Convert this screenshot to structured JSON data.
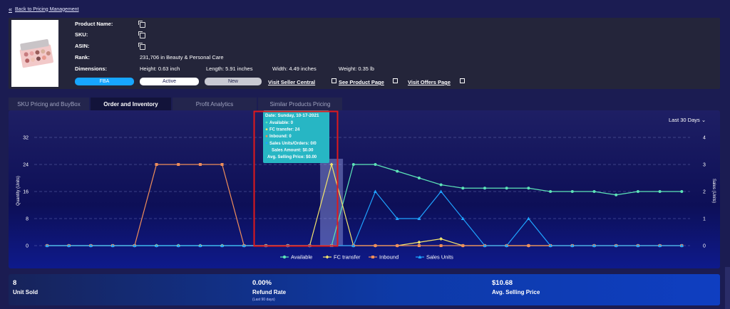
{
  "nav": {
    "back_label": "Back to Pricing Management"
  },
  "product": {
    "fields": {
      "name_label": "Product Name:",
      "sku_label": "SKU:",
      "asin_label": "ASIN:",
      "rank_label": "Rank:",
      "rank_value": "231,706 in Beauty & Personal Care",
      "dimensions_label": "Dimensions:",
      "height": "Height: 0.63 inch",
      "length": "Length: 5.91 inches",
      "width": "Width: 4.49 inches",
      "weight": "Weight: 0.35 lb"
    },
    "badges": {
      "fulfillment": "FBA",
      "status": "Active",
      "condition": "New"
    },
    "links": {
      "seller_central": "Visit Seller Central",
      "product_page": "See Product Page",
      "offers_page": "Visit Offers Page"
    }
  },
  "tabs": [
    "SKU Pricing and BuyBox",
    "Order and Inventory",
    "Profit Analytics",
    "Similar Products Pricing"
  ],
  "active_tab": "Order and Inventory",
  "chart_controls": {
    "range": "Last 30 Days"
  },
  "chart_data": {
    "type": "line",
    "ylabel_left": "Quantity (Units)",
    "ylabel_right": "Sales (Units)",
    "ylim_left": [
      0,
      32
    ],
    "ylim_right": [
      0,
      4
    ],
    "yticks_left": [
      "0",
      "8",
      "16",
      "24",
      "32"
    ],
    "yticks_right": [
      "0",
      "1",
      "2",
      "3",
      "4"
    ],
    "n_points": 30,
    "series": [
      {
        "name": "Available",
        "axis": "left",
        "color": "#5de5b8",
        "marker": "circle",
        "values": [
          0,
          0,
          0,
          0,
          0,
          0,
          0,
          0,
          0,
          0,
          0,
          0,
          0,
          0,
          24,
          24,
          22,
          20,
          18,
          17,
          17,
          17,
          17,
          16,
          16,
          16,
          15,
          16,
          16,
          16
        ]
      },
      {
        "name": "FC transfer",
        "axis": "left",
        "color": "#f4e56d",
        "marker": "diamond",
        "values": [
          0,
          0,
          0,
          0,
          0,
          0,
          0,
          0,
          0,
          0,
          0,
          0,
          0,
          24,
          0,
          0,
          0,
          1,
          2,
          0,
          0,
          0,
          0,
          0,
          0,
          0,
          0,
          0,
          0,
          0
        ]
      },
      {
        "name": "Inbound",
        "axis": "left",
        "color": "#f08e5a",
        "marker": "square",
        "values": [
          0,
          0,
          0,
          0,
          0,
          24,
          24,
          24,
          24,
          0,
          0,
          0,
          0,
          0,
          0,
          0,
          0,
          0,
          0,
          0,
          0,
          0,
          0,
          0,
          0,
          0,
          0,
          0,
          0,
          0
        ]
      },
      {
        "name": "Sales Units",
        "axis": "right",
        "color": "#1fa3ff",
        "marker": "triangle",
        "values": [
          0,
          0,
          0,
          0,
          0,
          0,
          0,
          0,
          0,
          0,
          0,
          0,
          0,
          0,
          0,
          2,
          1,
          1,
          2,
          1,
          0,
          0,
          1,
          0,
          0,
          0,
          0,
          0,
          0,
          0
        ]
      }
    ],
    "tooltip": {
      "date": "Date: Sunday, 10-17-2021",
      "available": "Available: 0",
      "fc_transfer": "FC transfer: 24",
      "inbound": "Inbound: 0",
      "sales_units_orders": "Sales Units/Orders: 0/0",
      "sales_amount": "Sales Amount: $0.00",
      "avg_selling_price": "Avg. Selling Price: $0.00"
    },
    "highlight_index": 13
  },
  "stats": {
    "units_sold": {
      "value": "8",
      "label": "Unit Sold"
    },
    "refund_rate": {
      "value": "0.00%",
      "label": "Refund Rate",
      "note": "(Last 90 days)"
    },
    "avg_price": {
      "value": "$10.68",
      "label": "Avg. Selling Price"
    }
  }
}
